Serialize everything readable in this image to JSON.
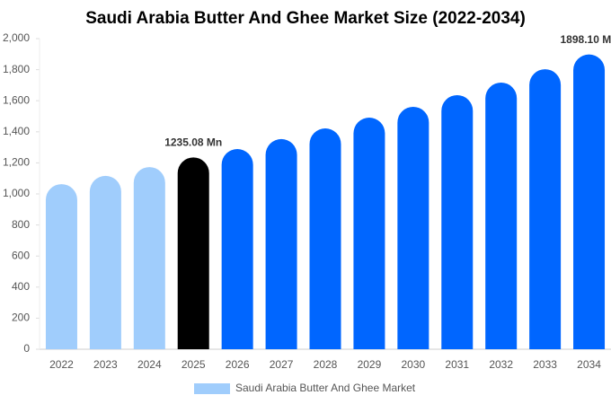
{
  "chart_data": {
    "type": "bar",
    "title": "Saudi Arabia Butter And Ghee Market Size (2022-2034)",
    "categories": [
      "2022",
      "2023",
      "2024",
      "2025",
      "2026",
      "2027",
      "2028",
      "2029",
      "2030",
      "2031",
      "2032",
      "2033",
      "2034"
    ],
    "series": [
      {
        "name": "Saudi Arabia Butter And Ghee Market",
        "color": "#a0cdfc",
        "values": [
          1063,
          1116,
          1173,
          1235.08,
          1289,
          1353,
          1422,
          1491,
          1561,
          1636,
          1717,
          1803,
          1898.1
        ],
        "value_labels": [
          null,
          null,
          null,
          "1235.08 Mn",
          null,
          null,
          null,
          null,
          null,
          null,
          null,
          null,
          "1898.10 Mn"
        ],
        "colors": [
          "#a0cdfc",
          "#a0cdfc",
          "#a0cdfc",
          "#000000",
          "#0066ff",
          "#0066ff",
          "#0066ff",
          "#0066ff",
          "#0066ff",
          "#0066ff",
          "#0066ff",
          "#0066ff",
          "#0066ff"
        ]
      }
    ],
    "ylim": [
      0,
      2000
    ],
    "yticks": [
      0,
      200,
      400,
      600,
      800,
      {
        "value": 1000,
        "label": "1,000"
      },
      {
        "value": 1200,
        "label": "1,200"
      },
      {
        "value": 1400,
        "label": "1,400"
      },
      {
        "value": 1600,
        "label": "1,600"
      },
      {
        "value": 1800,
        "label": "1,800"
      },
      {
        "value": 2000,
        "label": "2,000"
      }
    ]
  }
}
